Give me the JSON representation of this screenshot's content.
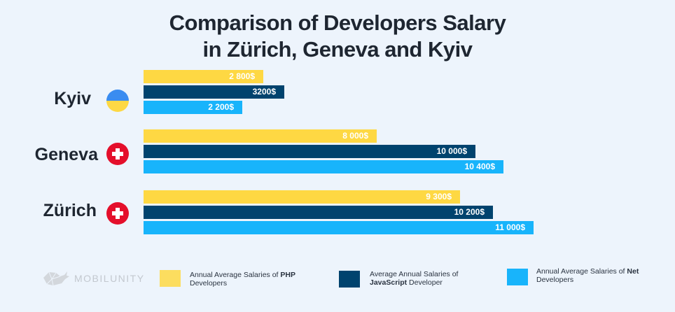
{
  "chart_data": {
    "type": "bar",
    "orientation": "horizontal",
    "title": "Comparison of Developers Salary in Zürich, Geneva and Kyiv",
    "title_lines": [
      "Comparison of Developers Salary",
      "in Zürich, Geneva and Kyiv"
    ],
    "categories": [
      "Kyiv",
      "Geneva",
      "Zürich"
    ],
    "series": [
      {
        "name": "Annual Average Salaries of PHP Developers",
        "color": "#fed843",
        "values": [
          2800,
          8000,
          9300
        ],
        "labels": [
          "2 800$",
          "8 000$",
          "9 300$"
        ]
      },
      {
        "name": "Average Annual Salaries of JavaScript Developer",
        "color": "#00436e",
        "values": [
          3200,
          10000,
          10200
        ],
        "labels": [
          "3200$",
          "10 000$",
          "10 200$"
        ]
      },
      {
        "name": "Annual Average Salaries of Net Developers",
        "color": "#18b4fb",
        "values": [
          2200,
          10400,
          11000
        ],
        "labels": [
          "2 200$",
          "10 400$",
          "11 000$"
        ]
      }
    ],
    "xlabel": "",
    "ylabel": "",
    "grid": false,
    "legend_position": "bottom"
  },
  "flags": [
    "ukraine-flag",
    "switzerland-flag",
    "switzerland-flag"
  ],
  "legend": [
    {
      "pre": "Annual Average Salaries of ",
      "bold": "PHP",
      "post": "Developers"
    },
    {
      "pre": "Average Annual Salaries of",
      "bold": "JavaScript",
      "post": " Developer"
    },
    {
      "pre": "Annual Average Salaries of ",
      "bold": "Net",
      "post": "Developers"
    }
  ],
  "logo": {
    "text": "MOBILUNITY"
  }
}
